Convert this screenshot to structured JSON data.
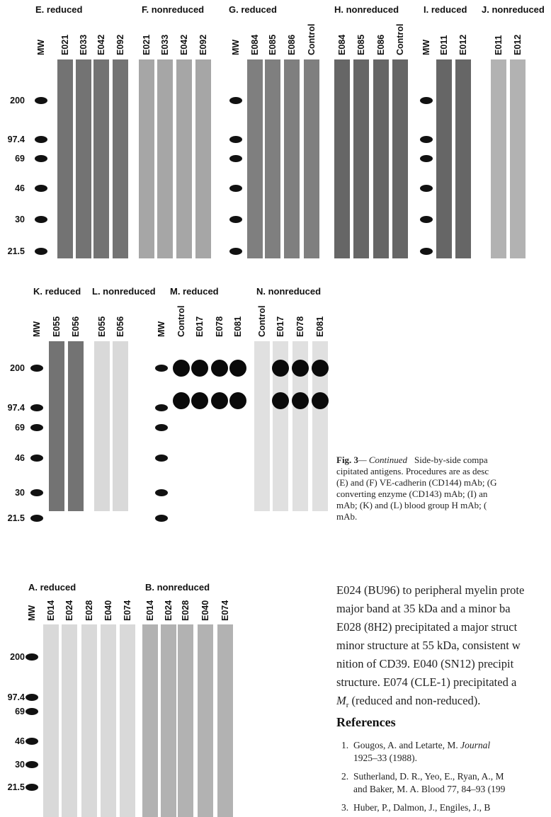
{
  "figure": {
    "rows": [
      {
        "mw": [
          "200",
          "97.4",
          "69",
          "46",
          "30",
          "21.5"
        ],
        "groups": [
          {
            "label": "E. reduced",
            "lanes": [
              "MW",
              "E021",
              "E033",
              "E042",
              "E092"
            ]
          },
          {
            "label": "F. nonreduced",
            "lanes": [
              "E021",
              "E033",
              "E042",
              "E092"
            ]
          },
          {
            "label": "G. reduced",
            "lanes": [
              "MW",
              "E084",
              "E085",
              "E086",
              "Control"
            ]
          },
          {
            "label": "H. nonreduced",
            "lanes": [
              "E084",
              "E085",
              "E086",
              "Control"
            ]
          },
          {
            "label": "I. reduced",
            "lanes": [
              "MW",
              "E011",
              "E012"
            ]
          },
          {
            "label": "J. nonreduced",
            "lanes": [
              "E011",
              "E012"
            ]
          }
        ]
      },
      {
        "mw": [
          "200",
          "97.4",
          "69",
          "46",
          "30",
          "21.5"
        ],
        "groups": [
          {
            "label": "K. reduced",
            "lanes": [
              "MW",
              "E055",
              "E056"
            ]
          },
          {
            "label": "L. nonreduced",
            "lanes": [
              "E055",
              "E056"
            ]
          },
          {
            "label": "M. reduced",
            "lanes": [
              "MW",
              "Control",
              "E017",
              "E078",
              "E081"
            ]
          },
          {
            "label": "N. nonreduced",
            "lanes": [
              "Control",
              "E017",
              "E078",
              "E081"
            ]
          }
        ]
      },
      {
        "mw": [
          "200",
          "97.4",
          "69",
          "46",
          "30",
          "21.5"
        ],
        "groups": [
          {
            "label": "A. reduced",
            "lanes": [
              "MW",
              "E014",
              "E024",
              "E028",
              "E040",
              "E074"
            ]
          },
          {
            "label": "B. nonreduced",
            "lanes": [
              "E014",
              "E024",
              "E028",
              "E040",
              "E074"
            ]
          }
        ]
      }
    ]
  },
  "caption": {
    "label": "Fig. 3",
    "continued": "— Continued",
    "first": "Side-by-side compa",
    "lines": [
      "cipitated antigens. Procedures are as desc",
      "(E) and (F) VE-cadherin (CD144) mAb; (G",
      "converting enzyme (CD143) mAb; (I) an",
      "mAb; (K) and (L) blood group H mAb; (",
      "mAb."
    ]
  },
  "body": {
    "lines": [
      "E024 (BU96) to peripheral myelin prote",
      "major band at 35 kDa and a minor ba",
      "E028 (8H2) precipitated a major struct",
      "minor structure at 55 kDa, consistent w",
      "nition of CD39. E040 (SN12) precipit",
      "structure. E074 (CLE-1) precipitated a"
    ],
    "last": {
      "symbol": "M",
      "subscript": "r",
      "text": " (reduced and non-reduced)."
    }
  },
  "references": {
    "title": "References",
    "items": [
      {
        "number": "1.",
        "text": "Gougos, A. and Letarte, M. ",
        "journal": "Journal",
        "cont": "1925–33 (1988)."
      },
      {
        "number": "2.",
        "text": "Sutherland, D. R., Yeo, E., Ryan, A., M",
        "cont": "and Baker, M. A. Blood 77, 84–93 (199"
      },
      {
        "number": "3.",
        "text": "Huber, P., Dalmon, J., Engiles, J., B"
      }
    ]
  }
}
